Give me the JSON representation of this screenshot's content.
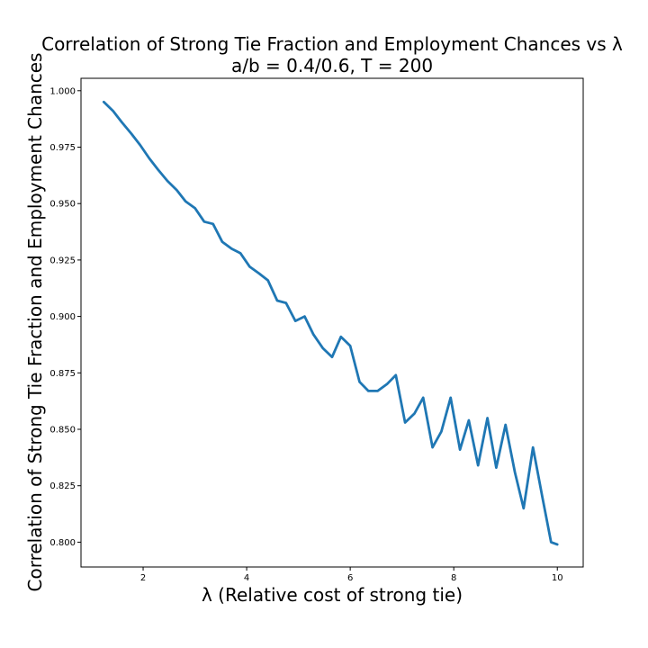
{
  "chart_data": {
    "type": "line",
    "title": "Correlation of Strong Tie Fraction and Employment Chances vs λ",
    "subtitle": "a/b = 0.4/0.6, T = 200",
    "xlabel": "λ (Relative cost of strong tie)",
    "ylabel": "Correlation of Strong Tie Fraction and Employment Chances",
    "xlim": [
      0.8,
      10.5
    ],
    "ylim": [
      0.789,
      1.0055
    ],
    "x_ticks": [
      2,
      4,
      6,
      8,
      10
    ],
    "y_ticks": [
      0.8,
      0.825,
      0.85,
      0.875,
      0.9,
      0.925,
      0.95,
      0.975,
      1.0
    ],
    "x_tick_labels": [
      "2",
      "4",
      "6",
      "8",
      "10"
    ],
    "y_tick_labels": [
      "0.800",
      "0.825",
      "0.850",
      "0.875",
      "0.900",
      "0.925",
      "0.950",
      "0.975",
      "1.000"
    ],
    "grid": false,
    "series": [
      {
        "color": "#1f77b4",
        "x": [
          1.24,
          1.42,
          1.59,
          1.77,
          1.94,
          2.12,
          2.29,
          2.47,
          2.65,
          2.82,
          3.0,
          3.18,
          3.35,
          3.53,
          3.71,
          3.88,
          4.06,
          4.24,
          4.41,
          4.59,
          4.76,
          4.94,
          5.12,
          5.29,
          5.47,
          5.65,
          5.82,
          6.0,
          6.18,
          6.35,
          6.53,
          6.71,
          6.88,
          7.06,
          7.24,
          7.41,
          7.59,
          7.76,
          7.94,
          8.12,
          8.29,
          8.47,
          8.65,
          8.82,
          9.0,
          9.18,
          9.35,
          9.53,
          9.71,
          9.88,
          10.0
        ],
        "y": [
          0.995,
          0.991,
          0.986,
          0.981,
          0.976,
          0.97,
          0.965,
          0.96,
          0.956,
          0.951,
          0.948,
          0.942,
          0.941,
          0.933,
          0.93,
          0.928,
          0.922,
          0.919,
          0.916,
          0.907,
          0.906,
          0.898,
          0.9,
          0.892,
          0.886,
          0.882,
          0.891,
          0.887,
          0.871,
          0.867,
          0.867,
          0.87,
          0.874,
          0.853,
          0.857,
          0.864,
          0.842,
          0.849,
          0.864,
          0.841,
          0.854,
          0.834,
          0.855,
          0.833,
          0.852,
          0.831,
          0.815,
          0.842,
          0.82,
          0.8,
          0.799
        ]
      }
    ]
  }
}
